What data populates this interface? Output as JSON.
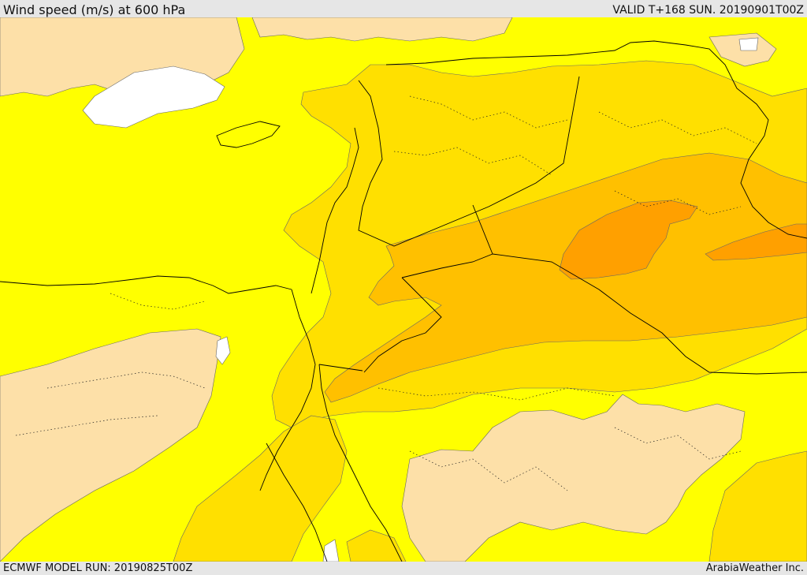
{
  "header": {
    "title": "Wind speed (m/s) at 600 hPa",
    "valid": "VALID T+168 SUN. 20190901T00Z"
  },
  "footer": {
    "model_run": "ECMWF MODEL RUN: 20190825T00Z",
    "credit": "ArabiaWeather Inc."
  },
  "map": {
    "colors": {
      "background": "#ffff00",
      "lowest_band": "#fde0a8",
      "band_1": "#ffe000",
      "band_2": "#ffc000",
      "band_3": "#ffa000",
      "no_data": "#ffffff",
      "contour_line": "#555555",
      "border_line": "#000000"
    }
  }
}
